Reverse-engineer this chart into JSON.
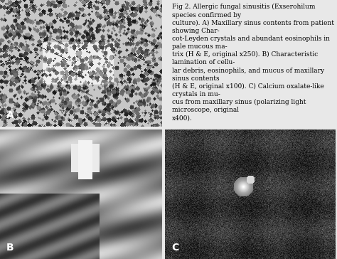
{
  "background_color": "#e8e8e8",
  "figure_bg": "#e8e8e8",
  "panel_bg_A": "#c8c0b0",
  "panel_bg_B": "#a0a090",
  "panel_bg_C": "#404040",
  "label_A": "A",
  "label_B": "B",
  "label_C": "C",
  "caption_title": "Fig 2. Allergic fungal sinusitis (Exserohilum species confirmed by",
  "caption_lines": [
    "Fig 2. Allergic fungal sinusitis (Exserohilum species confirmed by",
    "culture). A) Maxillary sinus contents from patient showing Char-",
    "cot-Leyden crystals and abundant eosinophils in pale mucous ma-",
    "trix (H & E, original x250). B) Characteristic lamination of cellu-",
    "lar debris, eosinophils, and mucus of maxillary sinus contents",
    "(H & E, original x100). C) Calcium oxalate-like crystals in mu-",
    "cus from maxillary sinus (polarizing light microscope, original",
    "x400)."
  ],
  "caption_fontsize": 6.5,
  "label_fontsize": 10,
  "label_color": "#ffffff",
  "label_color_dark": "#000000"
}
